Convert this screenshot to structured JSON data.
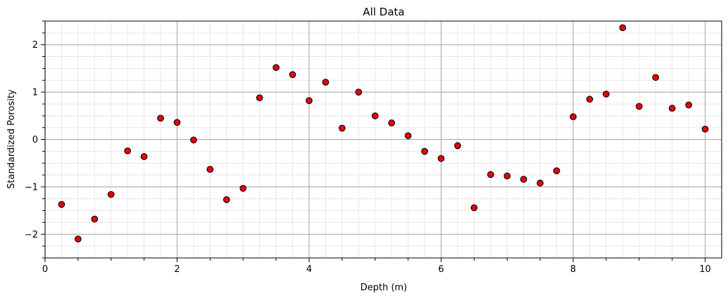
{
  "chart_data": {
    "type": "scatter",
    "title": "All Data",
    "xlabel": "Depth (m)",
    "ylabel": "Standardized Porosity",
    "xlim": [
      0,
      10.25
    ],
    "ylim": [
      -2.5,
      2.5
    ],
    "x_ticks": [
      0,
      2,
      4,
      6,
      8,
      10
    ],
    "x_tick_labels": [
      "0",
      "2",
      "4",
      "6",
      "8",
      "10"
    ],
    "x_minor_step": 0.25,
    "y_ticks": [
      -2,
      -1,
      0,
      1,
      2
    ],
    "y_tick_labels": [
      "−2",
      "−1",
      "0",
      "1",
      "2"
    ],
    "y_minor_step": 0.25,
    "grid": "major and minor",
    "marker": {
      "fill": "#e8000b",
      "edge": "#000000"
    },
    "colors": {
      "major_grid": "#b0b0b0",
      "minor_grid": "#e6e6e6"
    },
    "series": [
      {
        "x": [
          0.25,
          0.5,
          0.75,
          1.0,
          1.25,
          1.5,
          1.75,
          2.0,
          2.25,
          2.5,
          2.75,
          3.0,
          3.25,
          3.5,
          3.75,
          4.0,
          4.25,
          4.5,
          4.75,
          5.0,
          5.25,
          5.5,
          5.75,
          6.0,
          6.25,
          6.5,
          6.75,
          7.0,
          7.25,
          7.5,
          7.75,
          8.0,
          8.25,
          8.5,
          8.75,
          9.0,
          9.25,
          9.5,
          9.75,
          10.0
        ],
        "y": [
          -1.37,
          -2.1,
          -1.68,
          -1.16,
          -0.24,
          -0.36,
          0.45,
          0.36,
          -0.01,
          -0.63,
          -1.27,
          -1.03,
          0.88,
          1.52,
          1.37,
          0.82,
          1.21,
          0.24,
          1.0,
          0.5,
          0.35,
          0.08,
          -0.25,
          -0.4,
          -0.13,
          -1.44,
          -0.74,
          -0.77,
          -0.84,
          -0.92,
          -0.66,
          0.48,
          0.85,
          0.96,
          2.36,
          0.7,
          1.31,
          0.66,
          0.73,
          0.22
        ]
      }
    ]
  }
}
